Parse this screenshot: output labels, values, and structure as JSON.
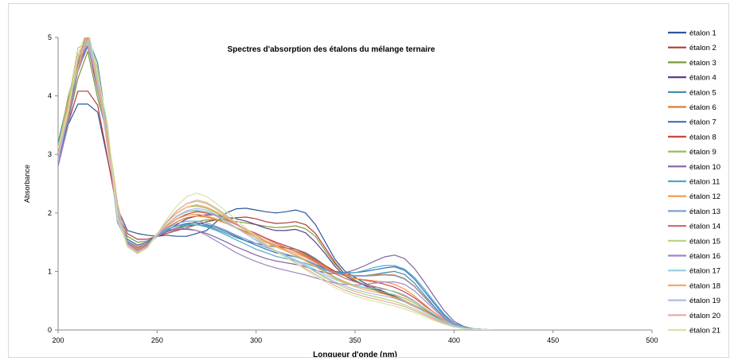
{
  "chart_data": {
    "type": "line",
    "title": "Spectres d'absorption  des étalons du mélange ternaire",
    "xlabel": "Longueur d'onde (nm)",
    "ylabel": "Absorbance",
    "xlim": [
      200,
      500
    ],
    "ylim": [
      0,
      5
    ],
    "x_ticks": [
      200,
      250,
      300,
      350,
      400,
      450,
      500
    ],
    "y_ticks": [
      0,
      1,
      2,
      3,
      4,
      5
    ],
    "grid": false,
    "legend": "right",
    "x": [
      200,
      205,
      210,
      215,
      220,
      225,
      230,
      235,
      240,
      245,
      250,
      255,
      260,
      265,
      270,
      275,
      280,
      285,
      290,
      295,
      300,
      305,
      310,
      315,
      320,
      325,
      330,
      335,
      340,
      345,
      350,
      355,
      360,
      365,
      370,
      375,
      380,
      385,
      390,
      395,
      400,
      405,
      410,
      415,
      420,
      425,
      430,
      440,
      450,
      460,
      475,
      500
    ],
    "series": [
      {
        "name": "étalon 1",
        "color": "#2E5597",
        "values": [
          2.8,
          3.5,
          3.7,
          3.9,
          3.6,
          3.0,
          2.0,
          1.7,
          1.65,
          1.62,
          1.6,
          1.62,
          1.6,
          1.6,
          1.65,
          1.7,
          1.85,
          2.0,
          2.07,
          2.08,
          2.05,
          2.02,
          2.0,
          2.02,
          2.05,
          2.0,
          1.8,
          1.5,
          1.2,
          1.0,
          0.9,
          0.8,
          0.72,
          0.65,
          0.58,
          0.5,
          0.42,
          0.34,
          0.24,
          0.15,
          0.08,
          0.04,
          0.02,
          0.01,
          0,
          0,
          0,
          0,
          0,
          0,
          0,
          0
        ]
      },
      {
        "name": "étalon 2",
        "color": "#B03A35",
        "values": [
          2.9,
          3.6,
          4.0,
          4.2,
          3.8,
          3.1,
          2.0,
          1.65,
          1.55,
          1.55,
          1.6,
          1.65,
          1.7,
          1.75,
          1.8,
          1.85,
          1.88,
          1.9,
          1.92,
          1.93,
          1.9,
          1.85,
          1.82,
          1.83,
          1.85,
          1.8,
          1.65,
          1.4,
          1.15,
          0.95,
          0.85,
          0.76,
          0.68,
          0.62,
          0.55,
          0.48,
          0.4,
          0.32,
          0.23,
          0.15,
          0.08,
          0.04,
          0.02,
          0.01,
          0,
          0,
          0,
          0,
          0,
          0,
          0,
          0
        ]
      },
      {
        "name": "étalon 3",
        "color": "#7A9A3A",
        "values": [
          3.0,
          3.7,
          4.3,
          4.6,
          4.0,
          3.2,
          2.0,
          1.6,
          1.5,
          1.52,
          1.6,
          1.68,
          1.75,
          1.8,
          1.85,
          1.88,
          1.88,
          1.87,
          1.85,
          1.83,
          1.8,
          1.77,
          1.75,
          1.76,
          1.78,
          1.73,
          1.6,
          1.35,
          1.12,
          0.95,
          0.85,
          0.77,
          0.7,
          0.64,
          0.57,
          0.5,
          0.42,
          0.33,
          0.24,
          0.15,
          0.08,
          0.04,
          0.02,
          0.01,
          0,
          0,
          0,
          0,
          0,
          0,
          0,
          0
        ]
      },
      {
        "name": "étalon 4",
        "color": "#5E3F8C",
        "values": [
          3.1,
          3.8,
          4.5,
          4.8,
          4.2,
          3.3,
          2.0,
          1.55,
          1.45,
          1.5,
          1.6,
          1.7,
          1.8,
          1.9,
          1.95,
          1.97,
          1.96,
          1.93,
          1.9,
          1.86,
          1.8,
          1.74,
          1.7,
          1.7,
          1.72,
          1.66,
          1.5,
          1.3,
          1.08,
          0.92,
          0.83,
          0.76,
          0.7,
          0.63,
          0.56,
          0.49,
          0.41,
          0.33,
          0.24,
          0.15,
          0.08,
          0.04,
          0.02,
          0.01,
          0,
          0,
          0,
          0,
          0,
          0,
          0,
          0
        ]
      },
      {
        "name": "étalon 5",
        "color": "#3A8AA8",
        "values": [
          3.2,
          3.9,
          4.7,
          5.0,
          4.4,
          3.4,
          2.0,
          1.5,
          1.4,
          1.48,
          1.6,
          1.68,
          1.74,
          1.78,
          1.8,
          1.78,
          1.72,
          1.65,
          1.58,
          1.52,
          1.48,
          1.45,
          1.42,
          1.4,
          1.38,
          1.32,
          1.22,
          1.1,
          1.0,
          0.95,
          0.93,
          0.93,
          0.95,
          0.98,
          1.0,
          0.95,
          0.8,
          0.6,
          0.4,
          0.22,
          0.1,
          0.05,
          0.02,
          0.01,
          0,
          0,
          0,
          0,
          0,
          0,
          0,
          0
        ]
      },
      {
        "name": "étalon 6",
        "color": "#E07B2C",
        "values": [
          3.0,
          3.8,
          4.6,
          5.0,
          4.3,
          3.3,
          2.0,
          1.52,
          1.42,
          1.48,
          1.62,
          1.75,
          1.85,
          1.92,
          1.95,
          1.93,
          1.88,
          1.82,
          1.75,
          1.68,
          1.6,
          1.52,
          1.45,
          1.4,
          1.35,
          1.28,
          1.18,
          1.08,
          1.0,
          0.95,
          0.93,
          0.93,
          0.94,
          0.95,
          0.94,
          0.88,
          0.75,
          0.57,
          0.38,
          0.21,
          0.1,
          0.05,
          0.02,
          0.01,
          0,
          0,
          0,
          0,
          0,
          0,
          0,
          0
        ]
      },
      {
        "name": "étalon 7",
        "color": "#3E6EC1",
        "values": [
          2.9,
          3.7,
          4.5,
          5.0,
          4.2,
          3.2,
          2.0,
          1.55,
          1.45,
          1.5,
          1.63,
          1.72,
          1.78,
          1.82,
          1.83,
          1.8,
          1.75,
          1.68,
          1.6,
          1.52,
          1.45,
          1.38,
          1.32,
          1.28,
          1.25,
          1.2,
          1.12,
          1.05,
          1.0,
          0.98,
          0.98,
          1.0,
          1.03,
          1.06,
          1.08,
          1.02,
          0.87,
          0.66,
          0.45,
          0.25,
          0.12,
          0.05,
          0.02,
          0.01,
          0,
          0,
          0,
          0,
          0,
          0,
          0,
          0
        ]
      },
      {
        "name": "étalon 8",
        "color": "#C9463F",
        "values": [
          3.0,
          3.8,
          4.6,
          5.0,
          4.3,
          3.3,
          2.0,
          1.5,
          1.4,
          1.46,
          1.62,
          1.78,
          1.9,
          1.98,
          2.02,
          2.0,
          1.95,
          1.88,
          1.8,
          1.72,
          1.65,
          1.57,
          1.5,
          1.44,
          1.38,
          1.3,
          1.2,
          1.1,
          1.0,
          0.93,
          0.88,
          0.85,
          0.82,
          0.78,
          0.73,
          0.65,
          0.55,
          0.42,
          0.3,
          0.18,
          0.09,
          0.04,
          0.02,
          0.01,
          0,
          0,
          0,
          0,
          0,
          0,
          0,
          0
        ]
      },
      {
        "name": "étalon 9",
        "color": "#9BBB59",
        "values": [
          3.1,
          3.9,
          4.7,
          5.0,
          4.4,
          3.4,
          2.0,
          1.45,
          1.35,
          1.45,
          1.65,
          1.85,
          2.0,
          2.1,
          2.12,
          2.08,
          2.0,
          1.9,
          1.8,
          1.7,
          1.6,
          1.5,
          1.42,
          1.35,
          1.28,
          1.2,
          1.1,
          1.0,
          0.9,
          0.82,
          0.76,
          0.72,
          0.68,
          0.64,
          0.6,
          0.54,
          0.46,
          0.36,
          0.26,
          0.16,
          0.08,
          0.04,
          0.02,
          0.01,
          0,
          0,
          0,
          0,
          0,
          0,
          0,
          0
        ]
      },
      {
        "name": "étalon 10",
        "color": "#8064A2",
        "values": [
          2.8,
          3.6,
          4.4,
          5.0,
          4.2,
          3.2,
          2.0,
          1.5,
          1.38,
          1.45,
          1.6,
          1.68,
          1.72,
          1.72,
          1.7,
          1.65,
          1.58,
          1.5,
          1.42,
          1.35,
          1.28,
          1.22,
          1.18,
          1.15,
          1.12,
          1.08,
          1.02,
          0.98,
          0.96,
          0.98,
          1.03,
          1.1,
          1.18,
          1.25,
          1.28,
          1.22,
          1.05,
          0.82,
          0.57,
          0.33,
          0.15,
          0.06,
          0.02,
          0.01,
          0,
          0,
          0,
          0,
          0,
          0,
          0,
          0
        ]
      },
      {
        "name": "étalon 11",
        "color": "#4BACC6",
        "values": [
          2.9,
          3.7,
          4.5,
          5.0,
          4.3,
          3.3,
          2.0,
          1.52,
          1.4,
          1.47,
          1.62,
          1.72,
          1.78,
          1.8,
          1.8,
          1.76,
          1.7,
          1.62,
          1.54,
          1.46,
          1.38,
          1.32,
          1.26,
          1.22,
          1.18,
          1.14,
          1.08,
          1.02,
          0.98,
          0.97,
          0.98,
          1.02,
          1.07,
          1.1,
          1.1,
          1.04,
          0.9,
          0.7,
          0.48,
          0.27,
          0.12,
          0.05,
          0.02,
          0.01,
          0,
          0,
          0,
          0,
          0,
          0,
          0,
          0
        ]
      },
      {
        "name": "étalon 12",
        "color": "#F79646",
        "values": [
          3.0,
          3.8,
          4.6,
          5.0,
          4.3,
          3.3,
          2.0,
          1.48,
          1.38,
          1.46,
          1.62,
          1.78,
          1.9,
          1.96,
          1.98,
          1.95,
          1.9,
          1.82,
          1.74,
          1.66,
          1.58,
          1.5,
          1.43,
          1.37,
          1.31,
          1.24,
          1.15,
          1.06,
          0.98,
          0.92,
          0.88,
          0.86,
          0.84,
          0.82,
          0.78,
          0.7,
          0.58,
          0.44,
          0.3,
          0.18,
          0.09,
          0.04,
          0.02,
          0.01,
          0,
          0,
          0,
          0,
          0,
          0,
          0,
          0
        ]
      },
      {
        "name": "étalon 13",
        "color": "#7F9FD0",
        "values": [
          2.9,
          3.7,
          4.5,
          5.0,
          4.2,
          3.2,
          2.0,
          1.5,
          1.4,
          1.47,
          1.62,
          1.74,
          1.82,
          1.86,
          1.86,
          1.83,
          1.77,
          1.7,
          1.62,
          1.55,
          1.48,
          1.41,
          1.35,
          1.3,
          1.25,
          1.19,
          1.11,
          1.03,
          0.97,
          0.93,
          0.92,
          0.92,
          0.93,
          0.94,
          0.93,
          0.87,
          0.74,
          0.56,
          0.38,
          0.21,
          0.1,
          0.04,
          0.02,
          0.01,
          0,
          0,
          0,
          0,
          0,
          0,
          0,
          0
        ]
      },
      {
        "name": "étalon 14",
        "color": "#D16E6A",
        "values": [
          3.0,
          3.8,
          4.6,
          5.0,
          4.3,
          3.3,
          2.0,
          1.48,
          1.36,
          1.44,
          1.62,
          1.8,
          1.94,
          2.02,
          2.04,
          2.02,
          1.96,
          1.88,
          1.8,
          1.72,
          1.64,
          1.56,
          1.48,
          1.41,
          1.34,
          1.26,
          1.16,
          1.06,
          0.96,
          0.88,
          0.82,
          0.78,
          0.74,
          0.7,
          0.65,
          0.58,
          0.49,
          0.38,
          0.27,
          0.17,
          0.08,
          0.04,
          0.02,
          0.01,
          0,
          0,
          0,
          0,
          0,
          0,
          0,
          0
        ]
      },
      {
        "name": "étalon 15",
        "color": "#B7D17E",
        "values": [
          3.1,
          3.9,
          4.7,
          5.0,
          4.4,
          3.4,
          2.0,
          1.44,
          1.32,
          1.42,
          1.64,
          1.86,
          2.04,
          2.16,
          2.2,
          2.16,
          2.06,
          1.94,
          1.82,
          1.7,
          1.58,
          1.46,
          1.36,
          1.27,
          1.18,
          1.09,
          0.99,
          0.89,
          0.8,
          0.72,
          0.66,
          0.61,
          0.57,
          0.53,
          0.49,
          0.43,
          0.36,
          0.28,
          0.2,
          0.12,
          0.06,
          0.03,
          0.01,
          0.01,
          0,
          0,
          0,
          0,
          0,
          0,
          0,
          0
        ]
      },
      {
        "name": "étalon 16",
        "color": "#9E86C2",
        "values": [
          2.8,
          3.6,
          4.4,
          5.0,
          4.2,
          3.2,
          2.0,
          1.5,
          1.4,
          1.46,
          1.6,
          1.7,
          1.74,
          1.74,
          1.7,
          1.62,
          1.52,
          1.42,
          1.32,
          1.24,
          1.17,
          1.11,
          1.06,
          1.02,
          0.98,
          0.94,
          0.89,
          0.84,
          0.8,
          0.78,
          0.77,
          0.78,
          0.8,
          0.82,
          0.82,
          0.78,
          0.67,
          0.51,
          0.35,
          0.2,
          0.09,
          0.04,
          0.02,
          0.01,
          0,
          0,
          0,
          0,
          0,
          0,
          0,
          0
        ]
      },
      {
        "name": "étalon 17",
        "color": "#8FD0E0",
        "values": [
          2.9,
          3.7,
          4.5,
          5.0,
          4.3,
          3.3,
          2.0,
          1.46,
          1.34,
          1.43,
          1.62,
          1.8,
          1.94,
          2.02,
          2.05,
          2.02,
          1.94,
          1.84,
          1.74,
          1.64,
          1.54,
          1.44,
          1.35,
          1.27,
          1.2,
          1.12,
          1.03,
          0.94,
          0.86,
          0.8,
          0.76,
          0.73,
          0.71,
          0.69,
          0.66,
          0.6,
          0.5,
          0.38,
          0.27,
          0.16,
          0.08,
          0.04,
          0.02,
          0.01,
          0,
          0,
          0,
          0,
          0,
          0,
          0,
          0
        ]
      },
      {
        "name": "étalon 18",
        "color": "#F8A86A",
        "values": [
          3.0,
          3.8,
          4.6,
          5.0,
          4.3,
          3.3,
          2.0,
          1.46,
          1.34,
          1.43,
          1.64,
          1.84,
          2.0,
          2.1,
          2.14,
          2.1,
          2.02,
          1.92,
          1.82,
          1.72,
          1.62,
          1.52,
          1.43,
          1.35,
          1.27,
          1.18,
          1.08,
          0.98,
          0.88,
          0.8,
          0.74,
          0.69,
          0.65,
          0.61,
          0.56,
          0.5,
          0.42,
          0.33,
          0.23,
          0.14,
          0.07,
          0.03,
          0.01,
          0.01,
          0,
          0,
          0,
          0,
          0,
          0,
          0,
          0
        ]
      },
      {
        "name": "étalon 19",
        "color": "#A9BEE3",
        "values": [
          2.9,
          3.7,
          4.5,
          5.0,
          4.2,
          3.2,
          2.0,
          1.46,
          1.34,
          1.42,
          1.62,
          1.8,
          1.95,
          2.04,
          2.08,
          2.05,
          1.97,
          1.86,
          1.75,
          1.64,
          1.53,
          1.43,
          1.34,
          1.26,
          1.18,
          1.1,
          1.0,
          0.91,
          0.82,
          0.75,
          0.69,
          0.65,
          0.61,
          0.58,
          0.54,
          0.48,
          0.4,
          0.31,
          0.22,
          0.13,
          0.07,
          0.03,
          0.01,
          0.01,
          0,
          0,
          0,
          0,
          0,
          0,
          0,
          0
        ]
      },
      {
        "name": "étalon 20",
        "color": "#E8A8A6",
        "values": [
          3.0,
          3.8,
          4.6,
          5.0,
          4.3,
          3.3,
          2.0,
          1.44,
          1.32,
          1.41,
          1.63,
          1.85,
          2.04,
          2.16,
          2.22,
          2.18,
          2.08,
          1.96,
          1.83,
          1.7,
          1.57,
          1.45,
          1.34,
          1.24,
          1.15,
          1.05,
          0.95,
          0.85,
          0.76,
          0.68,
          0.62,
          0.57,
          0.53,
          0.49,
          0.45,
          0.4,
          0.33,
          0.26,
          0.18,
          0.11,
          0.05,
          0.03,
          0.01,
          0.01,
          0,
          0,
          0,
          0,
          0,
          0,
          0,
          0
        ]
      },
      {
        "name": "étalon 21",
        "color": "#D3E6A6",
        "values": [
          3.1,
          3.9,
          4.7,
          5.0,
          4.4,
          3.4,
          2.0,
          1.42,
          1.3,
          1.4,
          1.64,
          1.9,
          2.12,
          2.28,
          2.34,
          2.28,
          2.16,
          2.02,
          1.88,
          1.74,
          1.6,
          1.47,
          1.35,
          1.24,
          1.14,
          1.03,
          0.92,
          0.82,
          0.72,
          0.64,
          0.58,
          0.53,
          0.49,
          0.45,
          0.41,
          0.36,
          0.3,
          0.23,
          0.16,
          0.1,
          0.05,
          0.02,
          0.01,
          0.01,
          0,
          0,
          0,
          0,
          0,
          0,
          0,
          0
        ]
      }
    ]
  }
}
